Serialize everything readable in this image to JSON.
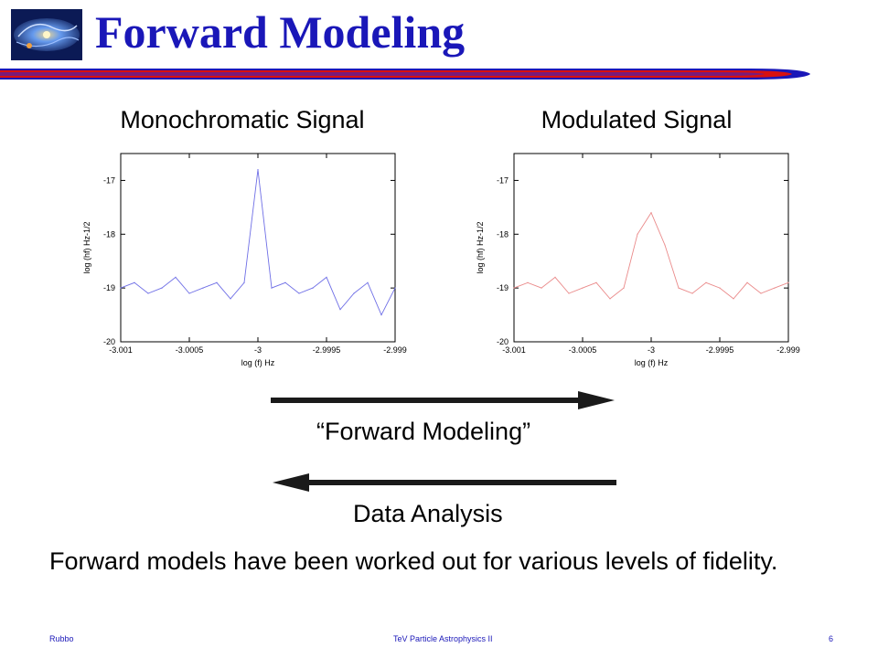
{
  "slide": {
    "title": "Forward Modeling",
    "logo_icon": "galaxy-spiral-icon",
    "title_bar_colors": [
      "#1a17b8",
      "#d81010",
      "#7a1a7a"
    ],
    "title_color": "#1a17b8"
  },
  "chart_data": [
    {
      "type": "line",
      "title": "Monochromatic Signal",
      "xlabel": "log (f) Hz",
      "ylabel": "log (hf) Hz-1/2",
      "xlim": [
        -3.001,
        -2.999
      ],
      "ylim": [
        -20,
        -16.5
      ],
      "x_ticks": [
        "-3.001",
        "-3.0005",
        "-3",
        "-2.9995",
        "-2.999"
      ],
      "y_ticks": [
        "-17",
        "-18",
        "-19",
        "-20"
      ],
      "series": [
        {
          "color": "#6f6fe6",
          "x": [
            -3.001,
            -3.0009,
            -3.0008,
            -3.0007,
            -3.0006,
            -3.0005,
            -3.0004,
            -3.0003,
            -3.0002,
            -3.0001,
            -3.0,
            -2.9999,
            -2.9998,
            -2.9997,
            -2.9996,
            -2.9995,
            -2.9994,
            -2.9993,
            -2.9992,
            -2.9991,
            -2.999
          ],
          "y": [
            -19.0,
            -18.9,
            -19.1,
            -19.0,
            -18.8,
            -19.1,
            -19.0,
            -18.9,
            -19.2,
            -18.9,
            -16.8,
            -19.0,
            -18.9,
            -19.1,
            -19.0,
            -18.8,
            -19.4,
            -19.1,
            -18.9,
            -19.5,
            -19.0
          ]
        }
      ]
    },
    {
      "type": "line",
      "title": "Modulated Signal",
      "xlabel": "log (f) Hz",
      "ylabel": "log (hf) Hz-1/2",
      "xlim": [
        -3.001,
        -2.999
      ],
      "ylim": [
        -20,
        -16.5
      ],
      "x_ticks": [
        "-3.001",
        "-3.0005",
        "-3",
        "-2.9995",
        "-2.999"
      ],
      "y_ticks": [
        "-17",
        "-18",
        "-19",
        "-20"
      ],
      "series": [
        {
          "color": "#ea8a8a",
          "x": [
            -3.001,
            -3.0009,
            -3.0008,
            -3.0007,
            -3.0006,
            -3.0005,
            -3.0004,
            -3.0003,
            -3.0002,
            -3.0001,
            -3.0,
            -2.9999,
            -2.9998,
            -2.9997,
            -2.9996,
            -2.9995,
            -2.9994,
            -2.9993,
            -2.9992,
            -2.9991,
            -2.999
          ],
          "y": [
            -19.0,
            -18.9,
            -19.0,
            -18.8,
            -19.1,
            -19.0,
            -18.9,
            -19.2,
            -19.0,
            -18.0,
            -17.6,
            -18.2,
            -19.0,
            -19.1,
            -18.9,
            -19.0,
            -19.2,
            -18.9,
            -19.1,
            -19.0,
            -18.9
          ]
        }
      ]
    }
  ],
  "captions": {
    "forward": "“Forward Modeling”",
    "analysis": "Data Analysis"
  },
  "body": {
    "text": "Forward models have been worked out for various levels of fidelity."
  },
  "footer": {
    "left": "Rubbo",
    "center": "TeV Particle Astrophysics II",
    "right": "6"
  }
}
